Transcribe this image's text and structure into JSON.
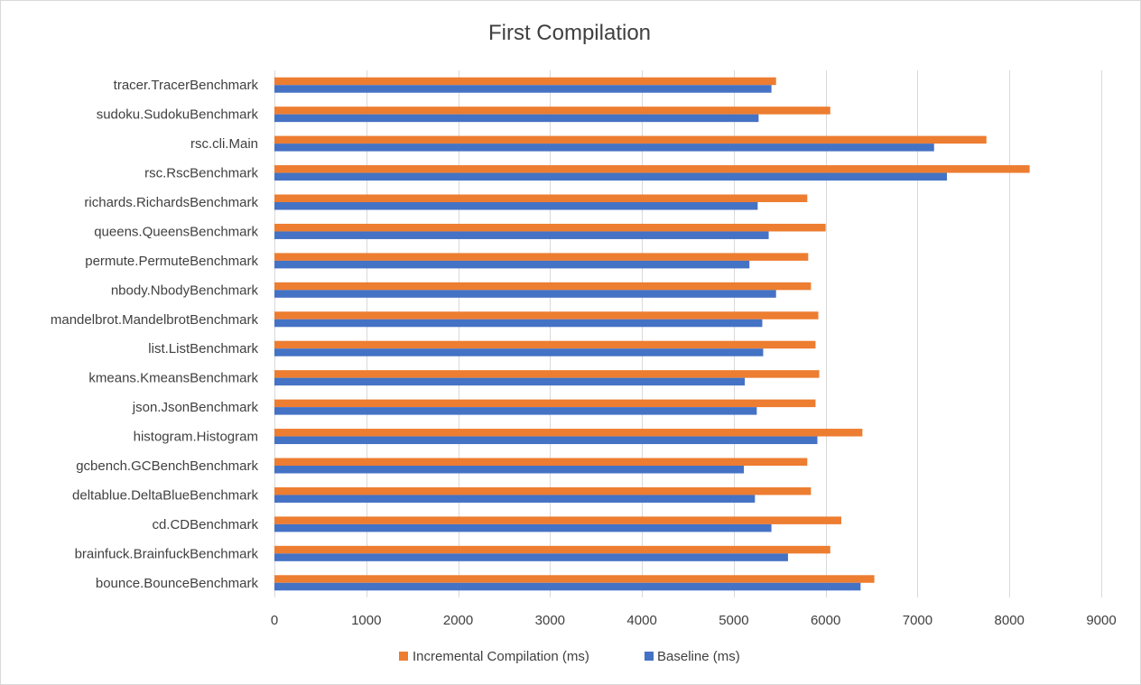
{
  "chart_data": {
    "type": "bar",
    "orientation": "horizontal",
    "title": "First Compilation",
    "xlabel": "",
    "ylabel": "",
    "xlim": [
      0,
      9000
    ],
    "xticks": [
      0,
      1000,
      2000,
      3000,
      4000,
      5000,
      6000,
      7000,
      8000,
      9000
    ],
    "grid": true,
    "legend_position": "bottom",
    "categories": [
      "tracer.TracerBenchmark",
      "sudoku.SudokuBenchmark",
      "rsc.cli.Main",
      "rsc.RscBenchmark",
      "richards.RichardsBenchmark",
      "queens.QueensBenchmark",
      "permute.PermuteBenchmark",
      "nbody.NbodyBenchmark",
      "mandelbrot.MandelbrotBenchmark",
      "list.ListBenchmark",
      "kmeans.KmeansBenchmark",
      "json.JsonBenchmark",
      "histogram.Histogram",
      "gcbench.GCBenchBenchmark",
      "deltablue.DeltaBlueBenchmark",
      "cd.CDBenchmark",
      "brainfuck.BrainfuckBenchmark",
      "bounce.BounceBenchmark"
    ],
    "series": [
      {
        "name": "Incremental Compilation (ms)",
        "color": "#ed7d31",
        "values": [
          5460,
          6050,
          7750,
          8220,
          5800,
          6000,
          5810,
          5840,
          5920,
          5890,
          5930,
          5890,
          6400,
          5800,
          5840,
          6170,
          6050,
          6530
        ]
      },
      {
        "name": "Baseline (ms)",
        "color": "#4472c4",
        "values": [
          5410,
          5270,
          7180,
          7320,
          5260,
          5380,
          5170,
          5460,
          5310,
          5320,
          5120,
          5250,
          5910,
          5110,
          5230,
          5410,
          5590,
          6380
        ]
      }
    ]
  }
}
